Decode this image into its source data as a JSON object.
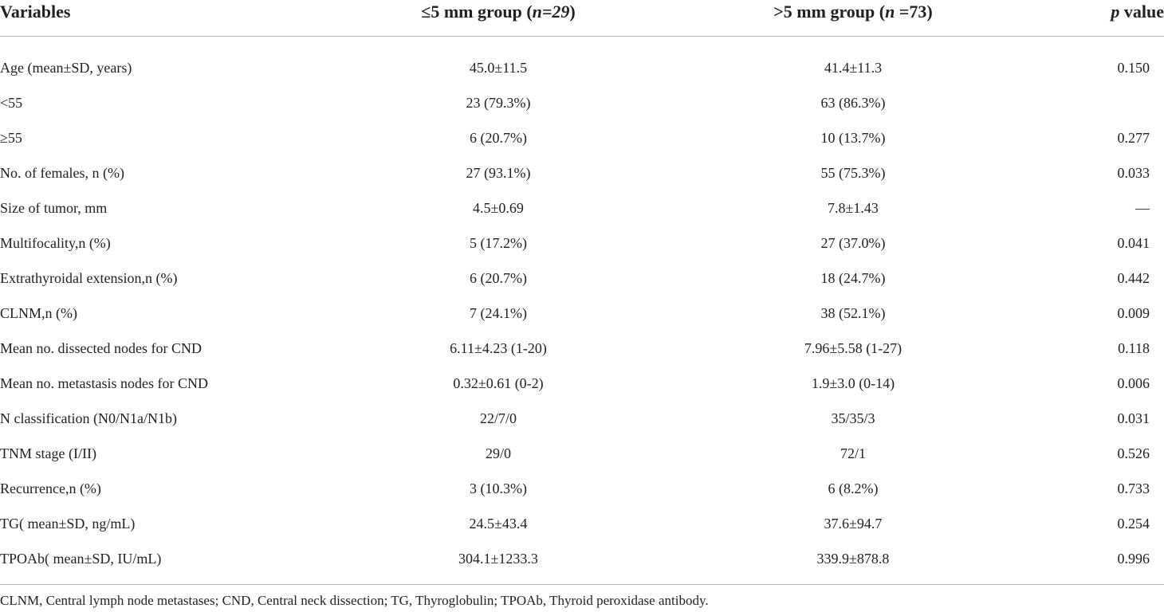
{
  "header": {
    "variables": "Variables",
    "group1_prefix": "≤5 mm group (",
    "group1_n": "n=29",
    "group1_suffix": ")",
    "group2_prefix": ">5 mm group (",
    "group2_n": "n",
    "group2_suffix": " =73)",
    "p_italic": "p",
    "p_rest": " value"
  },
  "rows": [
    {
      "variable": "Age (mean±SD, years)",
      "group1": "45.0±11.5",
      "group2": "41.4±11.3",
      "p": "0.150"
    },
    {
      "variable": "<55",
      "group1": "23 (79.3%)",
      "group2": "63 (86.3%)",
      "p": ""
    },
    {
      "variable": "≥55",
      "group1": "6 (20.7%)",
      "group2": "10 (13.7%)",
      "p": "0.277"
    },
    {
      "variable": "No. of females, n (%)",
      "group1": "27 (93.1%)",
      "group2": "55 (75.3%)",
      "p": "0.033"
    },
    {
      "variable": "Size of tumor, mm",
      "group1": "4.5±0.69",
      "group2": "7.8±1.43",
      "p": "—"
    },
    {
      "variable": "Multifocality,n (%)",
      "group1": "5 (17.2%)",
      "group2": "27 (37.0%)",
      "p": "0.041"
    },
    {
      "variable": "Extrathyroidal extension,n (%)",
      "group1": "6 (20.7%)",
      "group2": "18 (24.7%)",
      "p": "0.442"
    },
    {
      "variable": "CLNM,n (%)",
      "group1": "7 (24.1%)",
      "group2": "38 (52.1%)",
      "p": "0.009"
    },
    {
      "variable": "Mean no. dissected nodes for CND",
      "group1": "6.11±4.23 (1-20)",
      "group2": "7.96±5.58 (1-27)",
      "p": "0.118"
    },
    {
      "variable": "Mean no. metastasis nodes for CND",
      "group1": "0.32±0.61 (0-2)",
      "group2": "1.9±3.0 (0-14)",
      "p": "0.006"
    },
    {
      "variable": "N classification (N0/N1a/N1b)",
      "group1": "22/7/0",
      "group2": "35/35/3",
      "p": "0.031"
    },
    {
      "variable": "TNM stage (I/II)",
      "group1": "29/0",
      "group2": "72/1",
      "p": "0.526"
    },
    {
      "variable": "Recurrence,n (%)",
      "group1": "3 (10.3%)",
      "group2": "6 (8.2%)",
      "p": "0.733"
    },
    {
      "variable": "TG( mean±SD, ng/mL)",
      "group1": "24.5±43.4",
      "group2": "37.6±94.7",
      "p": "0.254"
    },
    {
      "variable": "TPOAb( mean±SD, IU/mL)",
      "group1": "304.1±1233.3",
      "group2": "339.9±878.8",
      "p": "0.996"
    }
  ],
  "footnote": "CLNM, Central lymph node metastases; CND, Central neck dissection; TG, Thyroglobulin; TPOAb, Thyroid peroxidase antibody."
}
